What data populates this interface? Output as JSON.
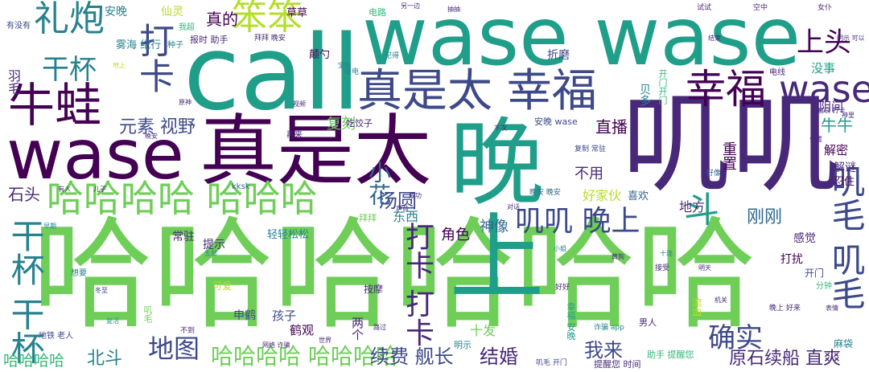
{
  "colors": {
    "dark_purple": "#440154",
    "purple": "#482878",
    "indigo": "#3e4989",
    "blue": "#31688e",
    "teal": "#26828e",
    "sea": "#1f9e89",
    "green": "#35b779",
    "lime": "#6ece58",
    "yellow_green": "#b5de2b",
    "yellow": "#fde725"
  },
  "words": [
    {
      "text": "哈哈哈哈哈哈",
      "color": "lime"
    },
    {
      "text": "call",
      "color": "sea"
    },
    {
      "text": "wase wase",
      "color": "sea"
    },
    {
      "text": "叽叽",
      "color": "purple"
    },
    {
      "text": "晚上",
      "color": "sea"
    },
    {
      "text": "真是太",
      "color": "dark_purple"
    },
    {
      "text": "wase",
      "color": "dark_purple"
    },
    {
      "text": "真是太 幸福",
      "color": "indigo"
    },
    {
      "text": "幸福",
      "color": "dark_purple"
    },
    {
      "text": "wase",
      "color": "purple"
    },
    {
      "text": "牛蛙",
      "color": "dark_purple"
    },
    {
      "text": "哈哈哈哈 哈哈哈",
      "color": "lime"
    },
    {
      "text": "礼炮",
      "color": "teal"
    },
    {
      "text": "笨笨",
      "color": "yellow_green"
    },
    {
      "text": "打卡",
      "color": "indigo"
    },
    {
      "text": "上头",
      "color": "dark_purple"
    },
    {
      "text": "干杯",
      "color": "teal"
    },
    {
      "text": "叽毛 叽毛",
      "color": "indigo"
    },
    {
      "text": "叽叽 晚上",
      "color": "indigo"
    },
    {
      "text": "小花",
      "color": "blue"
    },
    {
      "text": "打卡 打卡",
      "color": "purple"
    },
    {
      "text": "干杯 干杯",
      "color": "teal"
    },
    {
      "text": "斗",
      "color": "sea"
    },
    {
      "text": "确实",
      "color": "indigo"
    },
    {
      "text": "地图",
      "color": "indigo"
    },
    {
      "text": "哈哈哈哈 哈哈哈哈",
      "color": "lime"
    },
    {
      "text": "元素 视野",
      "color": "indigo"
    },
    {
      "text": "汤圆",
      "color": "indigo"
    },
    {
      "text": "续费 舰长",
      "color": "indigo"
    },
    {
      "text": "结婚",
      "color": "purple"
    },
    {
      "text": "我来",
      "color": "indigo"
    },
    {
      "text": "原石续船 直爽",
      "color": "purple"
    },
    {
      "text": "北斗",
      "color": "teal"
    },
    {
      "text": "哈哈哈哈",
      "color": "green"
    },
    {
      "text": "雾海 纪行",
      "color": "teal"
    },
    {
      "text": "石头",
      "color": "purple"
    },
    {
      "text": "真的",
      "color": "dark_purple"
    },
    {
      "text": "复刻",
      "color": "lime"
    },
    {
      "text": "牛牛",
      "color": "sea"
    },
    {
      "text": "直播",
      "color": "dark_purple"
    },
    {
      "text": "刚刚",
      "color": "blue"
    },
    {
      "text": "好家伙",
      "color": "yellow_green"
    },
    {
      "text": "神像",
      "color": "blue"
    },
    {
      "text": "角色",
      "color": "dark_purple"
    },
    {
      "text": "地方",
      "color": "purple"
    },
    {
      "text": "不用",
      "color": "purple"
    },
    {
      "text": "羽毛",
      "color": "purple"
    },
    {
      "text": "安晚",
      "color": "teal"
    },
    {
      "text": "仙灵",
      "color": "yellow_green"
    },
    {
      "text": "草草",
      "color": "dark_purple"
    },
    {
      "text": "电路",
      "color": "green"
    },
    {
      "text": "没事",
      "color": "sea"
    },
    {
      "text": "阴间",
      "color": "purple"
    },
    {
      "text": "解密",
      "color": "dark_purple"
    },
    {
      "text": "解谜",
      "color": "purple"
    },
    {
      "text": "忍住",
      "color": "dark_purple"
    },
    {
      "text": "感觉",
      "color": "purple"
    },
    {
      "text": "打扰",
      "color": "dark_purple"
    },
    {
      "text": "开门",
      "color": "indigo"
    },
    {
      "text": "东西",
      "color": "teal"
    },
    {
      "text": "常驻",
      "color": "purple"
    },
    {
      "text": "提示",
      "color": "purple"
    },
    {
      "text": "轻轻松松",
      "color": "teal"
    },
    {
      "text": "拜拜",
      "color": "lime"
    },
    {
      "text": "申鹤",
      "color": "indigo"
    },
    {
      "text": "孩子",
      "color": "indigo"
    },
    {
      "text": "鹤观",
      "color": "dark_purple"
    },
    {
      "text": "两个",
      "color": "purple"
    },
    {
      "text": "十发",
      "color": "lime"
    },
    {
      "text": "明示",
      "color": "teal"
    },
    {
      "text": "喜欢",
      "color": "blue"
    },
    {
      "text": "重置",
      "color": "dark_purple"
    },
    {
      "text": "贝多",
      "color": "teal"
    },
    {
      "text": "开门开门",
      "color": "green"
    },
    {
      "text": "复制 常驻",
      "color": "indigo"
    },
    {
      "text": "晚安 晚安",
      "color": "blue"
    },
    {
      "text": "安晚 wase",
      "color": "indigo"
    },
    {
      "text": "折磨",
      "color": "indigo"
    },
    {
      "text": "颠勺",
      "color": "dark_purple"
    },
    {
      "text": "报时 助手",
      "color": "purple"
    },
    {
      "text": "拜拜 晚安",
      "color": "purple"
    },
    {
      "text": "种子",
      "color": "teal"
    },
    {
      "text": "吃饺子",
      "color": "purple"
    },
    {
      "text": "再来",
      "color": "purple"
    },
    {
      "text": "分钟",
      "color": "green"
    },
    {
      "text": "麻袋",
      "color": "teal"
    },
    {
      "text": "男人",
      "color": "purple"
    },
    {
      "text": "助手 提醒您",
      "color": "green"
    },
    {
      "text": "提醒您 时间",
      "color": "purple"
    },
    {
      "text": "叽毛 开门",
      "color": "indigo"
    },
    {
      "text": "幸福 安晚",
      "color": "sea"
    },
    {
      "text": "按摩",
      "color": "purple"
    },
    {
      "text": "可爱",
      "color": "yellow_green"
    },
    {
      "text": "想要",
      "color": "teal"
    },
    {
      "text": "地铁 老人",
      "color": "indigo"
    },
    {
      "text": "有没有",
      "color": "indigo"
    },
    {
      "text": "kksk",
      "color": "blue"
    },
    {
      "text": "电线",
      "color": "purple"
    },
    {
      "text": "继电",
      "color": "teal"
    },
    {
      "text": "试试",
      "color": "purple"
    },
    {
      "text": "空中",
      "color": "purple"
    },
    {
      "text": "女仆",
      "color": "purple"
    },
    {
      "text": "晚上 好来",
      "color": "purple"
    },
    {
      "text": "诈骗 app",
      "color": "teal"
    },
    {
      "text": "好好",
      "color": "purple"
    },
    {
      "text": "接受",
      "color": "purple"
    },
    {
      "text": "小姐",
      "color": "teal"
    },
    {
      "text": "成功",
      "color": "purple"
    },
    {
      "text": "声音",
      "color": "purple"
    },
    {
      "text": "路过",
      "color": "purple"
    },
    {
      "text": "明天",
      "color": "purple"
    },
    {
      "text": "直哀 打卡",
      "color": "purple"
    },
    {
      "text": "记得",
      "color": "teal"
    },
    {
      "text": "五郎",
      "color": "teal"
    },
    {
      "text": "儿子",
      "color": "purple"
    },
    {
      "text": "咱爸",
      "color": "purple"
    },
    {
      "text": "黄狗",
      "color": "purple"
    },
    {
      "text": "十连",
      "color": "teal"
    },
    {
      "text": "冬至",
      "color": "indigo"
    },
    {
      "text": "复活",
      "color": "sea"
    },
    {
      "text": "另一边",
      "color": "purple"
    },
    {
      "text": "抽抽",
      "color": "purple"
    },
    {
      "text": "明示 可以",
      "color": "purple"
    },
    {
      "text": "我超",
      "color": "green"
    },
    {
      "text": "地上",
      "color": "yellow_green"
    },
    {
      "text": "叽毛",
      "color": "lime"
    },
    {
      "text": "不到",
      "color": "purple"
    },
    {
      "text": "好像",
      "color": "blue"
    },
    {
      "text": "宝箱",
      "color": "teal"
    },
    {
      "text": "机关",
      "color": "purple"
    },
    {
      "text": "早期",
      "color": "teal"
    },
    {
      "text": "有人",
      "color": "purple"
    },
    {
      "text": "位置",
      "color": "purple"
    },
    {
      "text": "结束",
      "color": "purple"
    },
    {
      "text": "原神",
      "color": "purple"
    },
    {
      "text": "视频",
      "color": "purple"
    },
    {
      "text": "晚安",
      "color": "purple"
    },
    {
      "text": "下次",
      "color": "purple"
    },
    {
      "text": "流血",
      "color": "yellow_green"
    },
    {
      "text": "表情",
      "color": "purple"
    },
    {
      "text": "对话",
      "color": "purple"
    },
    {
      "text": "网络 诈骗",
      "color": "purple"
    },
    {
      "text": "世界",
      "color": "purple"
    },
    {
      "text": "神里",
      "color": "purple"
    }
  ]
}
